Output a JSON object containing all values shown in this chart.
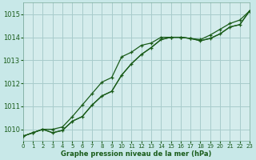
{
  "background_color": "#c8e8e8",
  "plot_background": "#d4ecec",
  "grid_color": "#a8cccc",
  "line_color": "#1a5c1a",
  "xlabel": "Graphe pression niveau de la mer (hPa)",
  "xlim": [
    0,
    23
  ],
  "ylim": [
    1009.5,
    1015.5
  ],
  "yticks": [
    1010,
    1011,
    1012,
    1013,
    1014,
    1015
  ],
  "xticks": [
    0,
    1,
    2,
    3,
    4,
    5,
    6,
    7,
    8,
    9,
    10,
    11,
    12,
    13,
    14,
    15,
    16,
    17,
    18,
    19,
    20,
    21,
    22,
    23
  ],
  "series1_x": [
    0,
    1,
    2,
    3,
    4,
    5,
    6,
    7,
    8,
    9,
    10,
    11,
    12,
    13,
    14,
    15,
    16,
    17,
    18,
    19,
    20,
    21,
    22,
    23
  ],
  "series1_y": [
    1009.7,
    1009.85,
    1010.0,
    1010.0,
    1010.1,
    1010.55,
    1011.05,
    1011.55,
    1012.05,
    1012.25,
    1013.15,
    1013.35,
    1013.65,
    1013.75,
    1014.0,
    1014.0,
    1014.0,
    1013.95,
    1013.9,
    1014.1,
    1014.35,
    1014.6,
    1014.75,
    1015.15
  ],
  "series2_x": [
    0,
    1,
    2,
    3,
    4,
    5,
    6,
    7,
    8,
    9,
    10,
    11,
    12,
    13,
    14,
    15,
    16,
    17,
    18,
    19,
    20,
    21,
    22,
    23
  ],
  "series2_y": [
    1009.7,
    1009.85,
    1010.0,
    1009.85,
    1009.95,
    1010.35,
    1010.55,
    1011.05,
    1011.45,
    1011.65,
    1012.35,
    1012.85,
    1013.25,
    1013.55,
    1013.9,
    1014.0,
    1014.0,
    1013.95,
    1013.85,
    1013.95,
    1014.15,
    1014.45,
    1014.55,
    1015.15
  ],
  "series3_x": [
    0,
    1,
    2,
    3,
    4,
    5,
    6,
    7,
    8,
    9,
    10,
    11,
    12,
    13,
    14,
    15,
    16,
    17,
    18,
    19,
    20,
    21,
    22,
    23
  ],
  "series3_y": [
    1009.7,
    1009.85,
    1010.0,
    1009.85,
    1009.95,
    1010.35,
    1010.55,
    1011.05,
    1011.45,
    1011.65,
    1012.35,
    1012.85,
    1013.25,
    1013.55,
    1013.9,
    1014.0,
    1014.0,
    1013.95,
    1013.85,
    1013.95,
    1014.15,
    1014.45,
    1014.55,
    1015.15
  ]
}
